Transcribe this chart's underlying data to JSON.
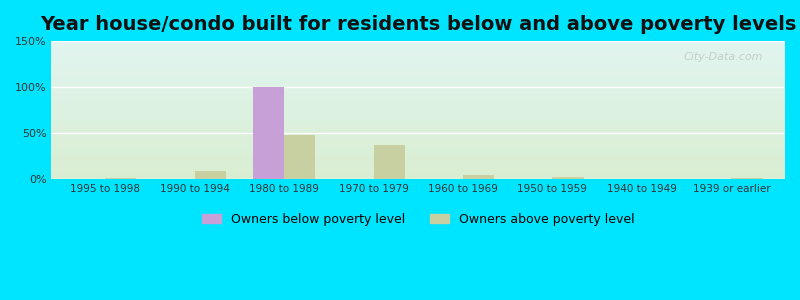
{
  "title": "Year house/condo built for residents below and above poverty levels",
  "categories": [
    "1995 to 1998",
    "1990 to 1994",
    "1980 to 1989",
    "1970 to 1979",
    "1960 to 1969",
    "1950 to 1959",
    "1940 to 1949",
    "1939 or earlier"
  ],
  "below_poverty": [
    0,
    0,
    100,
    0,
    0,
    0,
    0,
    0
  ],
  "above_poverty": [
    1,
    9,
    48,
    37,
    5,
    2,
    0,
    1
  ],
  "below_color": "#c8a0d8",
  "above_color": "#c8cfa0",
  "outer_bg": "#00e5ff",
  "ylim": [
    0,
    150
  ],
  "yticks": [
    0,
    50,
    100,
    150
  ],
  "ytick_labels": [
    "0%",
    "50%",
    "100%",
    "150%"
  ],
  "legend_below": "Owners below poverty level",
  "legend_above": "Owners above poverty level",
  "title_fontsize": 14,
  "watermark": "City-Data.com"
}
